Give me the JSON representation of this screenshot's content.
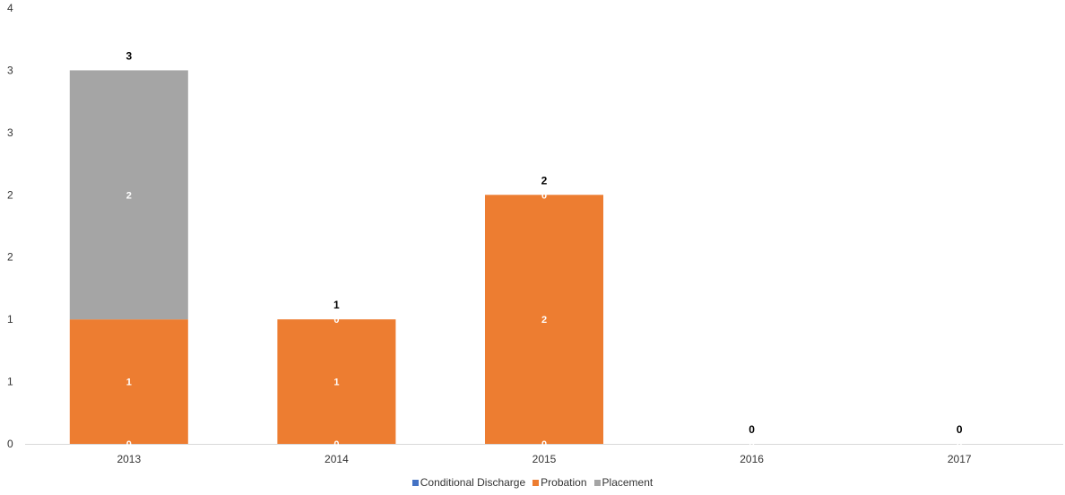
{
  "chart_data": {
    "type": "bar",
    "stacked": true,
    "categories": [
      "2013",
      "2014",
      "2015",
      "2016",
      "2017"
    ],
    "series": [
      {
        "name": "Conditional Discharge",
        "color": "#4472C4",
        "values": [
          0,
          0,
          0,
          0,
          0
        ]
      },
      {
        "name": "Probation",
        "color": "#ED7D31",
        "values": [
          1,
          1,
          2,
          0,
          0
        ]
      },
      {
        "name": "Placement",
        "color": "#A5A5A5",
        "values": [
          2,
          0,
          0,
          0,
          0
        ]
      }
    ],
    "segment_labels": [
      [
        "0",
        "1",
        "2"
      ],
      [
        "0",
        "1",
        "0"
      ],
      [
        "0",
        "2",
        "0"
      ],
      [
        "0",
        "",
        ""
      ],
      [
        "0",
        "",
        ""
      ]
    ],
    "totals": [
      "3",
      "1",
      "2",
      "0",
      "0"
    ],
    "y_tick_labels": [
      "0",
      "1",
      "1",
      "2",
      "2",
      "3",
      "3",
      "4"
    ],
    "ylim": [
      0,
      3.5
    ],
    "grid": false,
    "legend_position": "bottom"
  }
}
